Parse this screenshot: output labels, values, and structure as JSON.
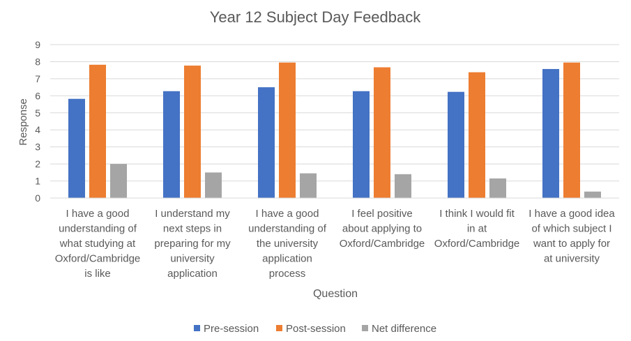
{
  "chart_data": {
    "type": "bar",
    "title": "Year 12 Subject Day Feedback",
    "xlabel": "Question",
    "ylabel": "Response",
    "ylim": [
      0,
      9
    ],
    "yticks": [
      0,
      1,
      2,
      3,
      4,
      5,
      6,
      7,
      8,
      9
    ],
    "grid": true,
    "legend_position": "bottom",
    "categories": [
      [
        "I have a good",
        "understanding of",
        "what studying at",
        "Oxford/Cambridge",
        "is like"
      ],
      [
        "I understand my",
        "next steps in",
        "preparing for my",
        "university",
        "application"
      ],
      [
        "I have a good",
        "understanding of",
        "the university",
        "application",
        "process"
      ],
      [
        "I feel positive",
        "about applying to",
        "Oxford/Cambridge"
      ],
      [
        "I think I would fit",
        "in at",
        "Oxford/Cambridge"
      ],
      [
        "I have a good idea",
        "of which subject I",
        "want to apply for",
        "at university"
      ]
    ],
    "series": [
      {
        "name": "Pre-session",
        "color": "#4472C4",
        "values": [
          5.82,
          6.27,
          6.5,
          6.27,
          6.23,
          7.57
        ]
      },
      {
        "name": "Post-session",
        "color": "#ED7D31",
        "values": [
          7.82,
          7.77,
          7.95,
          7.67,
          7.38,
          7.95
        ]
      },
      {
        "name": "Net difference",
        "color": "#A5A5A5",
        "values": [
          2.0,
          1.5,
          1.45,
          1.4,
          1.15,
          0.38
        ]
      }
    ]
  }
}
